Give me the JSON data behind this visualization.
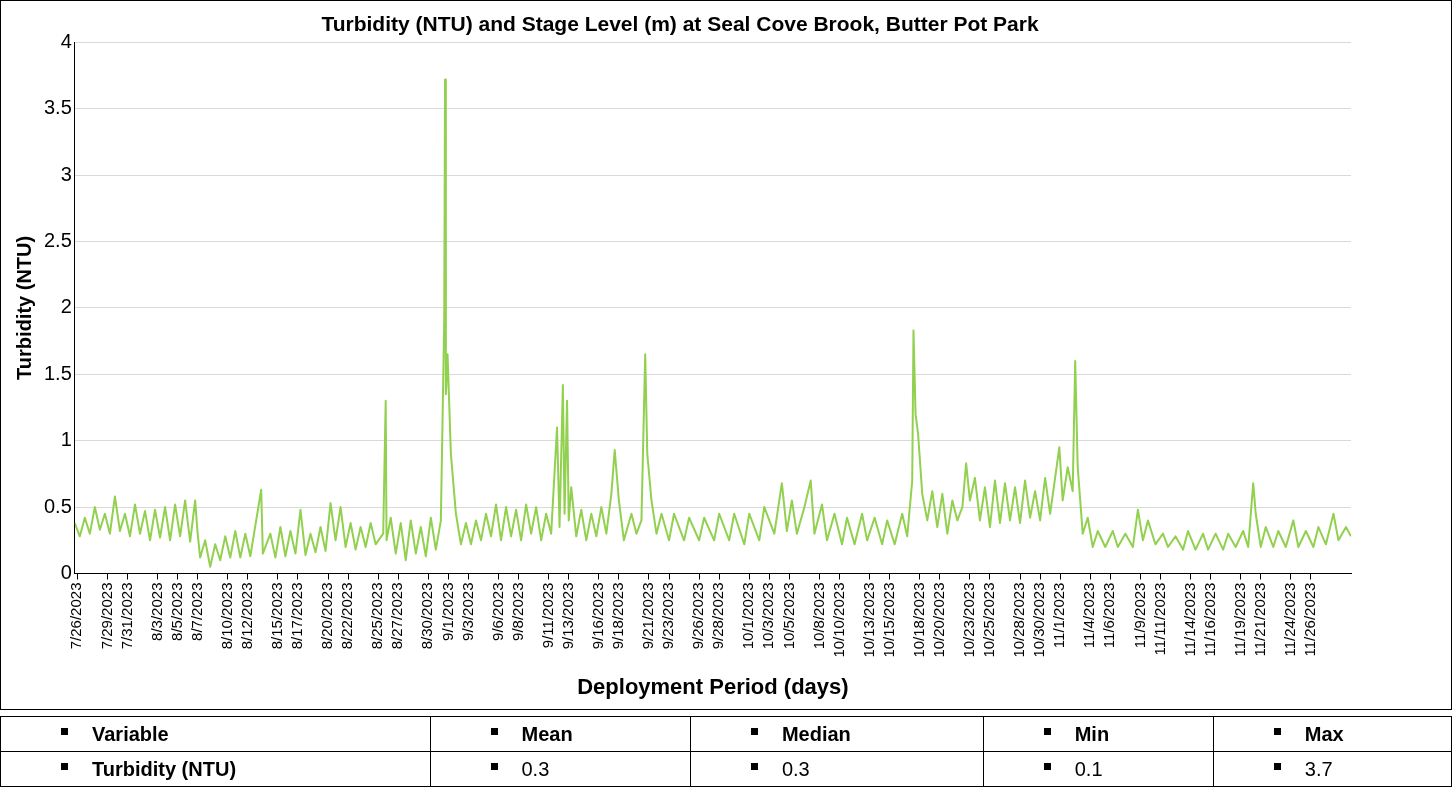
{
  "chart_data": {
    "type": "line",
    "title": "Turbidity (NTU) and Stage Level (m) at Seal Cove Brook, Butter Pot Park",
    "xlabel": "Deployment Period (days)",
    "ylabel": "Turbidity (NTU)",
    "x": [
      "2023-07-25T18:00",
      "2023-07-26T06:00",
      "2023-07-26T18:00",
      "2023-07-27T06:00",
      "2023-07-27T18:00",
      "2023-07-28T06:00",
      "2023-07-28T18:00",
      "2023-07-29T06:00",
      "2023-07-29T18:00",
      "2023-07-30T06:00",
      "2023-07-30T18:00",
      "2023-07-31T06:00",
      "2023-07-31T18:00",
      "2023-08-01T06:00",
      "2023-08-01T18:00",
      "2023-08-02T06:00",
      "2023-08-02T18:00",
      "2023-08-03T06:00",
      "2023-08-03T18:00",
      "2023-08-04T06:00",
      "2023-08-04T18:00",
      "2023-08-05T06:00",
      "2023-08-05T18:00",
      "2023-08-06T06:00",
      "2023-08-06T18:00",
      "2023-08-07T00:00",
      "2023-08-07T06:00",
      "2023-08-07T18:00",
      "2023-08-08T06:00",
      "2023-08-08T18:00",
      "2023-08-09T06:00",
      "2023-08-09T18:00",
      "2023-08-10T06:00",
      "2023-08-10T18:00",
      "2023-08-11T06:00",
      "2023-08-11T18:00",
      "2023-08-12T06:00",
      "2023-08-12T18:00",
      "2023-08-13T08:00",
      "2023-08-13T12:00",
      "2023-08-14T06:00",
      "2023-08-14T18:00",
      "2023-08-15T06:00",
      "2023-08-15T18:00",
      "2023-08-16T06:00",
      "2023-08-16T18:00",
      "2023-08-17T06:00",
      "2023-08-17T18:00",
      "2023-08-18T06:00",
      "2023-08-18T18:00",
      "2023-08-19T06:00",
      "2023-08-19T18:00",
      "2023-08-20T06:00",
      "2023-08-20T18:00",
      "2023-08-21T06:00",
      "2023-08-21T18:00",
      "2023-08-22T06:00",
      "2023-08-22T18:00",
      "2023-08-23T06:00",
      "2023-08-23T18:00",
      "2023-08-24T06:00",
      "2023-08-24T18:00",
      "2023-08-25T12:00",
      "2023-08-25T18:00",
      "2023-08-25T20:00",
      "2023-08-26T06:00",
      "2023-08-26T18:00",
      "2023-08-27T06:00",
      "2023-08-27T18:00",
      "2023-08-28T06:00",
      "2023-08-28T18:00",
      "2023-08-29T06:00",
      "2023-08-29T18:00",
      "2023-08-30T06:00",
      "2023-08-30T18:00",
      "2023-08-31T06:00",
      "2023-08-31T14:00",
      "2023-08-31T16:00",
      "2023-08-31T18:00",
      "2023-08-31T22:00",
      "2023-09-01T06:00",
      "2023-09-01T18:00",
      "2023-09-02T06:00",
      "2023-09-02T18:00",
      "2023-09-03T06:00",
      "2023-09-03T18:00",
      "2023-09-04T06:00",
      "2023-09-04T18:00",
      "2023-09-05T06:00",
      "2023-09-05T18:00",
      "2023-09-06T06:00",
      "2023-09-06T18:00",
      "2023-09-07T06:00",
      "2023-09-07T18:00",
      "2023-09-08T06:00",
      "2023-09-08T18:00",
      "2023-09-09T06:00",
      "2023-09-09T18:00",
      "2023-09-10T06:00",
      "2023-09-10T18:00",
      "2023-09-11T06:00",
      "2023-09-11T20:00",
      "2023-09-12T02:00",
      "2023-09-12T10:00",
      "2023-09-12T14:00",
      "2023-09-12T20:00",
      "2023-09-13T00:00",
      "2023-09-13T06:00",
      "2023-09-13T18:00",
      "2023-09-14T06:00",
      "2023-09-14T18:00",
      "2023-09-15T06:00",
      "2023-09-15T18:00",
      "2023-09-16T06:00",
      "2023-09-16T18:00",
      "2023-09-17T06:00",
      "2023-09-17T14:00",
      "2023-09-18T00:00",
      "2023-09-18T12:00",
      "2023-09-19T06:00",
      "2023-09-19T18:00",
      "2023-09-20T06:00",
      "2023-09-20T15:00",
      "2023-09-20T20:00",
      "2023-09-21T06:00",
      "2023-09-21T18:00",
      "2023-09-22T06:00",
      "2023-09-23T00:00",
      "2023-09-23T12:00",
      "2023-09-24T12:00",
      "2023-09-25T00:00",
      "2023-09-26T00:00",
      "2023-09-26T12:00",
      "2023-09-27T12:00",
      "2023-09-28T00:00",
      "2023-09-29T00:00",
      "2023-09-29T12:00",
      "2023-09-30T12:00",
      "2023-10-01T00:00",
      "2023-10-02T00:00",
      "2023-10-02T12:00",
      "2023-10-03T12:00",
      "2023-10-04T06:00",
      "2023-10-04T18:00",
      "2023-10-05T06:00",
      "2023-10-05T18:00",
      "2023-10-06T12:00",
      "2023-10-07T03:00",
      "2023-10-07T12:00",
      "2023-10-08T06:00",
      "2023-10-08T18:00",
      "2023-10-09T12:00",
      "2023-10-10T06:00",
      "2023-10-10T18:00",
      "2023-10-11T12:00",
      "2023-10-12T06:00",
      "2023-10-12T18:00",
      "2023-10-13T12:00",
      "2023-10-14T06:00",
      "2023-10-14T18:00",
      "2023-10-15T12:00",
      "2023-10-16T06:00",
      "2023-10-16T18:00",
      "2023-10-17T06:00",
      "2023-10-17T09:00",
      "2023-10-17T14:00",
      "2023-10-17T20:00",
      "2023-10-18T06:00",
      "2023-10-18T18:00",
      "2023-10-19T06:00",
      "2023-10-19T18:00",
      "2023-10-20T06:00",
      "2023-10-20T18:00",
      "2023-10-21T06:00",
      "2023-10-21T18:00",
      "2023-10-22T06:00",
      "2023-10-22T15:00",
      "2023-10-23T00:00",
      "2023-10-23T12:00",
      "2023-10-24T00:00",
      "2023-10-24T12:00",
      "2023-10-25T00:00",
      "2023-10-25T12:00",
      "2023-10-26T00:00",
      "2023-10-26T12:00",
      "2023-10-27T00:00",
      "2023-10-27T12:00",
      "2023-10-28T00:00",
      "2023-10-28T12:00",
      "2023-10-29T00:00",
      "2023-10-29T12:00",
      "2023-10-30T00:00",
      "2023-10-30T12:00",
      "2023-10-31T00:00",
      "2023-10-31T22:00",
      "2023-11-01T06:00",
      "2023-11-01T18:00",
      "2023-11-02T06:00",
      "2023-11-02T12:00",
      "2023-11-02T18:00",
      "2023-11-03T06:00",
      "2023-11-03T18:00",
      "2023-11-04T06:00",
      "2023-11-04T18:00",
      "2023-11-05T12:00",
      "2023-11-06T06:00",
      "2023-11-06T18:00",
      "2023-11-07T12:00",
      "2023-11-08T06:00",
      "2023-11-08T18:00",
      "2023-11-09T06:00",
      "2023-11-09T18:00",
      "2023-11-10T12:00",
      "2023-11-11T06:00",
      "2023-11-11T18:00",
      "2023-11-12T12:00",
      "2023-11-13T06:00",
      "2023-11-13T18:00",
      "2023-11-14T12:00",
      "2023-11-15T06:00",
      "2023-11-15T18:00",
      "2023-11-16T12:00",
      "2023-11-17T06:00",
      "2023-11-17T18:00",
      "2023-11-18T12:00",
      "2023-11-19T06:00",
      "2023-11-19T18:00",
      "2023-11-20T06:00",
      "2023-11-20T12:00",
      "2023-11-21T00:00",
      "2023-11-21T12:00",
      "2023-11-22T06:00",
      "2023-11-22T18:00",
      "2023-11-23T12:00",
      "2023-11-24T06:00",
      "2023-11-24T18:00",
      "2023-11-25T12:00",
      "2023-11-26T06:00",
      "2023-11-26T18:00",
      "2023-11-27T12:00",
      "2023-11-28T06:00",
      "2023-11-28T18:00",
      "2023-11-29T12:00",
      "2023-11-30T00:00"
    ],
    "series": [
      {
        "color": "#92d050",
        "values": [
          0.38,
          0.28,
          0.42,
          0.3,
          0.5,
          0.33,
          0.45,
          0.3,
          0.58,
          0.32,
          0.45,
          0.28,
          0.52,
          0.3,
          0.47,
          0.25,
          0.48,
          0.27,
          0.5,
          0.25,
          0.52,
          0.28,
          0.55,
          0.24,
          0.55,
          0.3,
          0.12,
          0.25,
          0.05,
          0.22,
          0.1,
          0.28,
          0.12,
          0.32,
          0.12,
          0.3,
          0.13,
          0.36,
          0.63,
          0.15,
          0.3,
          0.12,
          0.35,
          0.13,
          0.32,
          0.15,
          0.48,
          0.14,
          0.3,
          0.16,
          0.35,
          0.17,
          0.53,
          0.25,
          0.5,
          0.2,
          0.38,
          0.18,
          0.35,
          0.2,
          0.38,
          0.22,
          0.3,
          1.3,
          0.25,
          0.42,
          0.15,
          0.38,
          0.1,
          0.4,
          0.15,
          0.35,
          0.13,
          0.42,
          0.18,
          0.4,
          1.9,
          3.72,
          1.35,
          1.65,
          0.9,
          0.45,
          0.22,
          0.38,
          0.22,
          0.4,
          0.25,
          0.45,
          0.28,
          0.52,
          0.25,
          0.5,
          0.28,
          0.48,
          0.25,
          0.52,
          0.3,
          0.5,
          0.25,
          0.45,
          0.3,
          1.1,
          0.35,
          1.42,
          0.45,
          1.3,
          0.4,
          0.65,
          0.28,
          0.48,
          0.25,
          0.45,
          0.28,
          0.5,
          0.3,
          0.6,
          0.93,
          0.55,
          0.25,
          0.45,
          0.3,
          0.4,
          1.65,
          0.9,
          0.55,
          0.3,
          0.45,
          0.25,
          0.45,
          0.25,
          0.42,
          0.25,
          0.42,
          0.25,
          0.45,
          0.25,
          0.45,
          0.22,
          0.45,
          0.25,
          0.5,
          0.3,
          0.68,
          0.32,
          0.55,
          0.3,
          0.5,
          0.7,
          0.3,
          0.52,
          0.25,
          0.45,
          0.22,
          0.42,
          0.22,
          0.45,
          0.25,
          0.42,
          0.22,
          0.4,
          0.22,
          0.45,
          0.28,
          0.7,
          1.83,
          1.2,
          1.05,
          0.6,
          0.4,
          0.62,
          0.35,
          0.6,
          0.3,
          0.55,
          0.4,
          0.5,
          0.83,
          0.55,
          0.72,
          0.4,
          0.65,
          0.35,
          0.7,
          0.38,
          0.68,
          0.4,
          0.65,
          0.38,
          0.7,
          0.42,
          0.62,
          0.4,
          0.72,
          0.45,
          0.95,
          0.55,
          0.8,
          0.62,
          1.6,
          0.8,
          0.3,
          0.42,
          0.2,
          0.32,
          0.2,
          0.32,
          0.2,
          0.3,
          0.2,
          0.48,
          0.25,
          0.4,
          0.22,
          0.3,
          0.2,
          0.28,
          0.18,
          0.32,
          0.18,
          0.3,
          0.18,
          0.3,
          0.18,
          0.3,
          0.2,
          0.32,
          0.2,
          0.68,
          0.45,
          0.2,
          0.35,
          0.2,
          0.32,
          0.2,
          0.4,
          0.2,
          0.32,
          0.2,
          0.35,
          0.22,
          0.45,
          0.25,
          0.35,
          0.28
        ]
      }
    ],
    "xlim": [
      "2023-07-25T18:00",
      "2023-11-30T00:00"
    ],
    "xticks": [
      {
        "value": "2023-07-26",
        "label": "7/26/2023"
      },
      {
        "value": "2023-07-29",
        "label": "7/29/2023"
      },
      {
        "value": "2023-07-31",
        "label": "7/31/2023"
      },
      {
        "value": "2023-08-03",
        "label": "8/3/2023"
      },
      {
        "value": "2023-08-05",
        "label": "8/5/2023"
      },
      {
        "value": "2023-08-07",
        "label": "8/7/2023"
      },
      {
        "value": "2023-08-10",
        "label": "8/10/2023"
      },
      {
        "value": "2023-08-12",
        "label": "8/12/2023"
      },
      {
        "value": "2023-08-15",
        "label": "8/15/2023"
      },
      {
        "value": "2023-08-17",
        "label": "8/17/2023"
      },
      {
        "value": "2023-08-20",
        "label": "8/20/2023"
      },
      {
        "value": "2023-08-22",
        "label": "8/22/2023"
      },
      {
        "value": "2023-08-25",
        "label": "8/25/2023"
      },
      {
        "value": "2023-08-27",
        "label": "8/27/2023"
      },
      {
        "value": "2023-08-30",
        "label": "8/30/2023"
      },
      {
        "value": "2023-09-01",
        "label": "9/1/2023"
      },
      {
        "value": "2023-09-03",
        "label": "9/3/2023"
      },
      {
        "value": "2023-09-06",
        "label": "9/6/2023"
      },
      {
        "value": "2023-09-08",
        "label": "9/8/2023"
      },
      {
        "value": "2023-09-11",
        "label": "9/11/2023"
      },
      {
        "value": "2023-09-13",
        "label": "9/13/2023"
      },
      {
        "value": "2023-09-16",
        "label": "9/16/2023"
      },
      {
        "value": "2023-09-18",
        "label": "9/18/2023"
      },
      {
        "value": "2023-09-21",
        "label": "9/21/2023"
      },
      {
        "value": "2023-09-23",
        "label": "9/23/2023"
      },
      {
        "value": "2023-09-26",
        "label": "9/26/2023"
      },
      {
        "value": "2023-09-28",
        "label": "9/28/2023"
      },
      {
        "value": "2023-10-01",
        "label": "10/1/2023"
      },
      {
        "value": "2023-10-03",
        "label": "10/3/2023"
      },
      {
        "value": "2023-10-05",
        "label": "10/5/2023"
      },
      {
        "value": "2023-10-08",
        "label": "10/8/2023"
      },
      {
        "value": "2023-10-10",
        "label": "10/10/2023"
      },
      {
        "value": "2023-10-13",
        "label": "10/13/2023"
      },
      {
        "value": "2023-10-15",
        "label": "10/15/2023"
      },
      {
        "value": "2023-10-18",
        "label": "10/18/2023"
      },
      {
        "value": "2023-10-20",
        "label": "10/20/2023"
      },
      {
        "value": "2023-10-23",
        "label": "10/23/2023"
      },
      {
        "value": "2023-10-25",
        "label": "10/25/2023"
      },
      {
        "value": "2023-10-28",
        "label": "10/28/2023"
      },
      {
        "value": "2023-10-30",
        "label": "10/30/2023"
      },
      {
        "value": "2023-11-01",
        "label": "11/1/2023"
      },
      {
        "value": "2023-11-04",
        "label": "11/4/2023"
      },
      {
        "value": "2023-11-06",
        "label": "11/6/2023"
      },
      {
        "value": "2023-11-09",
        "label": "11/9/2023"
      },
      {
        "value": "2023-11-11",
        "label": "11/11/2023"
      },
      {
        "value": "2023-11-14",
        "label": "11/14/2023"
      },
      {
        "value": "2023-11-16",
        "label": "11/16/2023"
      },
      {
        "value": "2023-11-19",
        "label": "11/19/2023"
      },
      {
        "value": "2023-11-21",
        "label": "11/21/2023"
      },
      {
        "value": "2023-11-24",
        "label": "11/24/2023"
      },
      {
        "value": "2023-11-26",
        "label": "11/26/2023"
      }
    ],
    "ylim": [
      0,
      4
    ],
    "yticks": [
      0,
      0.5,
      1,
      1.5,
      2,
      2.5,
      3,
      3.5,
      4
    ],
    "grid": "y",
    "legend": false,
    "marker": "none",
    "line_style": "solid",
    "annotations": [
      "Variable",
      "Mean",
      "Median",
      "Min",
      "Max",
      "Turbidity (NTU)",
      "0.3",
      "0.3",
      "0.1",
      "3.7"
    ]
  }
}
